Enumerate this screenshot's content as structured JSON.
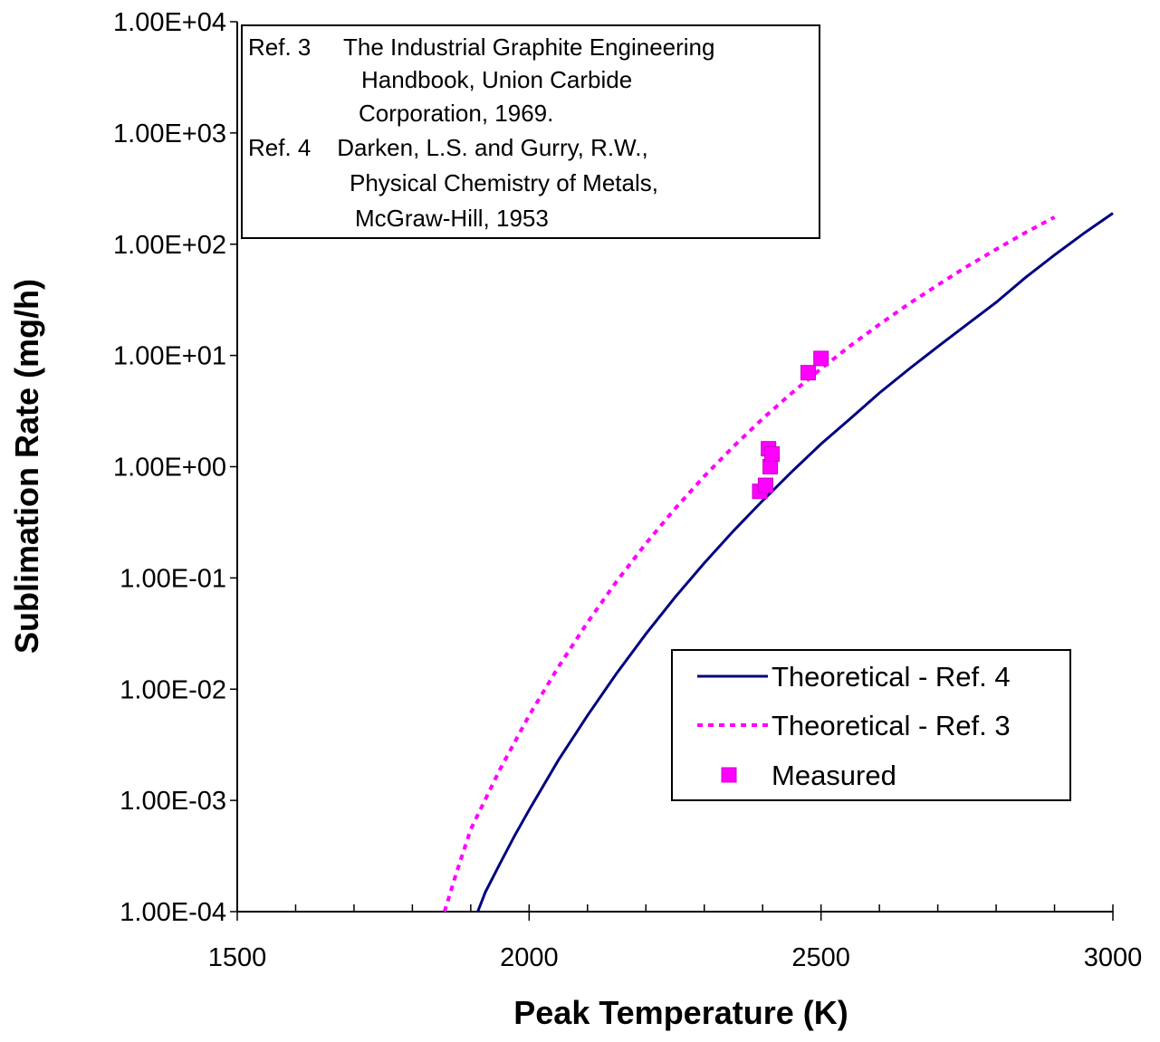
{
  "chart_data": {
    "type": "line",
    "xlabel": "Peak Temperature (K)",
    "ylabel": "Sublimation Rate (mg/h)",
    "xlim": [
      1500,
      3000
    ],
    "ylim": [
      0.0001,
      10000
    ],
    "y_scale": "log",
    "grid": false,
    "x_ticks": [
      {
        "value": 1500,
        "label": "1500"
      },
      {
        "value": 2000,
        "label": "2000"
      },
      {
        "value": 2500,
        "label": "2500"
      },
      {
        "value": 3000,
        "label": "3000"
      }
    ],
    "y_ticks": [
      {
        "value": 0.0001,
        "label": "1.00E-04"
      },
      {
        "value": 0.001,
        "label": "1.00E-03"
      },
      {
        "value": 0.01,
        "label": "1.00E-02"
      },
      {
        "value": 0.1,
        "label": "1.00E-01"
      },
      {
        "value": 1,
        "label": "1.00E+00"
      },
      {
        "value": 10,
        "label": "1.00E+01"
      },
      {
        "value": 100,
        "label": "1.00E+02"
      },
      {
        "value": 1000,
        "label": "1.00E+03"
      },
      {
        "value": 10000,
        "label": "1.00E+04"
      }
    ],
    "legend_position": "bottom-right",
    "series": [
      {
        "name": "Theoretical - Ref. 4",
        "style": "solid",
        "color": "#000080",
        "x": [
          1912,
          1925,
          1950,
          1975,
          2000,
          2050,
          2100,
          2150,
          2200,
          2250,
          2300,
          2350,
          2400,
          2450,
          2500,
          2550,
          2600,
          2650,
          2700,
          2750,
          2800,
          2850,
          2900,
          2950,
          3000
        ],
        "y": [
          0.0001,
          0.00015,
          0.00027,
          0.00048,
          0.00082,
          0.0023,
          0.0058,
          0.0139,
          0.0314,
          0.0671,
          0.136,
          0.265,
          0.495,
          0.9,
          1.6,
          2.7,
          4.6,
          7.5,
          12,
          19,
          30,
          50,
          80,
          125,
          190
        ]
      },
      {
        "name": "Theoretical - Ref. 3",
        "style": "dashed",
        "color": "#ff00ff",
        "x": [
          1855,
          1875,
          1900,
          1950,
          2000,
          2050,
          2100,
          2150,
          2200,
          2250,
          2300,
          2350,
          2400,
          2450,
          2500,
          2550,
          2600,
          2650,
          2700,
          2750,
          2800,
          2850,
          2900
        ],
        "y": [
          0.0001,
          0.00022,
          0.00055,
          0.0019,
          0.0058,
          0.0158,
          0.0398,
          0.0933,
          0.204,
          0.42,
          0.82,
          1.52,
          2.7,
          4.6,
          7.6,
          12.2,
          19,
          29,
          43,
          63,
          90,
          127,
          175
        ]
      },
      {
        "name": "Measured",
        "style": "marker",
        "color": "#ff00ff",
        "x": [
          2395,
          2405,
          2410,
          2413,
          2416,
          2478,
          2500
        ],
        "y": [
          0.6,
          0.68,
          1.45,
          1.0,
          1.3,
          7.0,
          9.4
        ]
      }
    ],
    "annotation_lines": [
      "Ref. 3     The Industrial Graphite Engineering",
      "Handbook, Union Carbide",
      "Corporation, 1969.",
      "Ref. 4    Darken, L.S. and Gurry, R.W.,",
      "Physical Chemistry of Metals,",
      "McGraw-Hill, 1953"
    ]
  }
}
